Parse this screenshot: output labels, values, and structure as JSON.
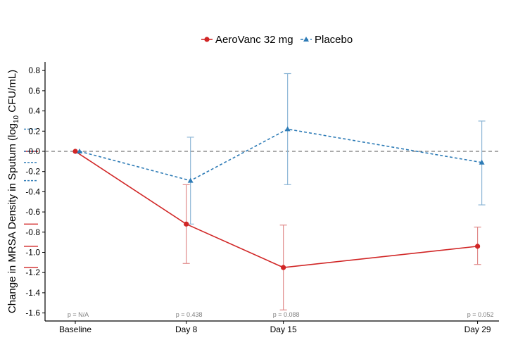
{
  "chart_data": {
    "type": "line",
    "title": "",
    "xlabel": "",
    "ylabel": "Change in MRSA Density in Sputum (log10 CFU/mL)",
    "ylabel_parts": {
      "pre": "Change in MRSA Density in Sputum (log",
      "sub": "10",
      "post": " CFU/mL)"
    },
    "categories": [
      "Baseline",
      "Day 8",
      "Day 15",
      "Day 29"
    ],
    "x": [
      0,
      8,
      15,
      29
    ],
    "ylim": [
      -1.65,
      0.88
    ],
    "yticks": [
      0.8,
      0.6,
      0.4,
      0.2,
      0.0,
      -0.2,
      -0.4,
      -0.6,
      -0.8,
      -1.0,
      -1.2,
      -1.4,
      -1.6
    ],
    "ytick_labels": [
      "0.8",
      "0.6",
      "0.4",
      "0.2",
      "0.0",
      "-0.2",
      "-0.4",
      "-0.6",
      "-0.8",
      "-1.0",
      "-1.2",
      "-1.4",
      "-1.6"
    ],
    "reference_line": 0.0,
    "series": [
      {
        "name": "AeroVanc 32 mg",
        "color": "#d12626",
        "errorbar_color": "#e08a8a",
        "marker": "circle",
        "linestyle": "solid",
        "values": [
          0.0,
          -0.72,
          -1.15,
          -0.94
        ],
        "lower": [
          0.0,
          -1.11,
          -1.57,
          -1.12
        ],
        "upper": [
          0.0,
          -0.33,
          -0.73,
          -0.75
        ]
      },
      {
        "name": "Placebo",
        "color": "#2d7bb6",
        "errorbar_color": "#8db6d6",
        "marker": "triangle",
        "linestyle": "dashed",
        "values": [
          0.0,
          -0.29,
          0.22,
          -0.11
        ],
        "lower": [
          0.0,
          -0.72,
          -0.33,
          -0.53
        ],
        "upper": [
          0.0,
          0.14,
          0.77,
          0.3
        ]
      }
    ],
    "p_values": [
      "p = N/A",
      "p = 0.438",
      "p = 0.088",
      "p = 0.052"
    ],
    "legend_position": "top-center"
  }
}
